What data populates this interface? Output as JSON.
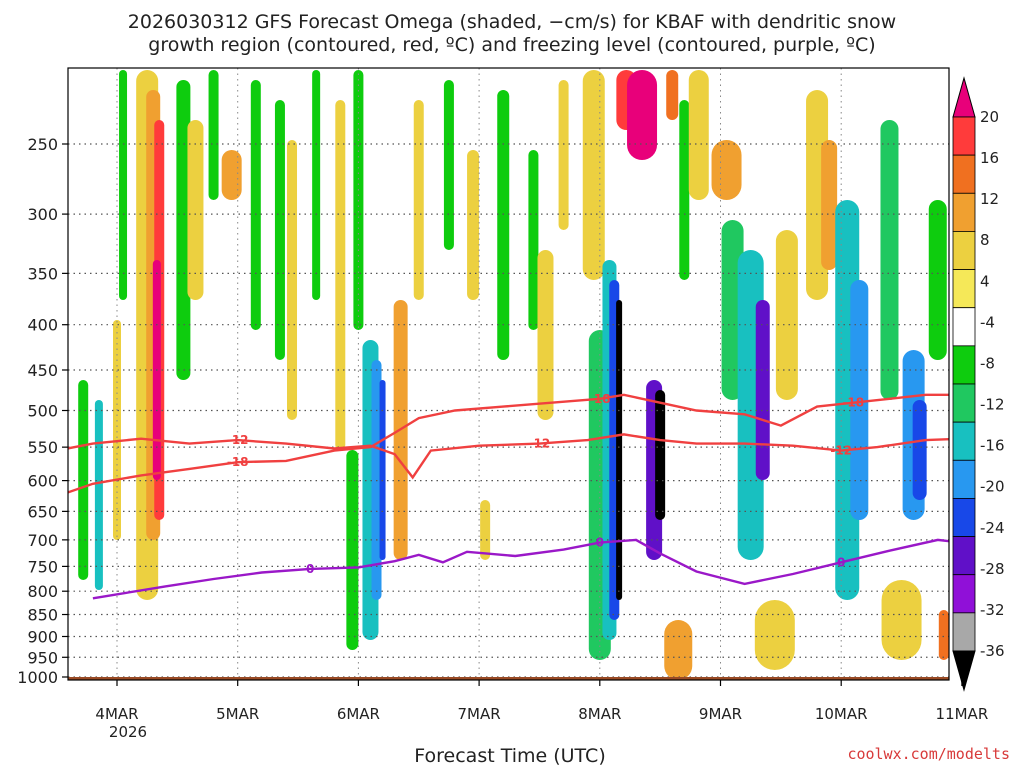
{
  "title_line1": "2026030312 GFS Forecast Omega (shaded, −cm/s) for KBAF with dendritic snow",
  "title_line2": "growth region (contoured, red, ºC) and freezing level (contoured, purple, ºC)",
  "xlabel": "Forecast Time (UTC)",
  "credit": "coolwx.com/modelts",
  "year_label": "2026",
  "chart_data": {
    "type": "heatmap",
    "x_ticks": [
      "4MAR",
      "5MAR",
      "6MAR",
      "7MAR",
      "8MAR",
      "9MAR",
      "10MAR",
      "11MAR"
    ],
    "y_ticks": [
      250,
      300,
      350,
      400,
      450,
      500,
      550,
      600,
      650,
      700,
      750,
      800,
      850,
      900,
      950,
      1000
    ],
    "y_unit": "hPa",
    "y_scale": "log",
    "y_range": [
      1000,
      200
    ],
    "grid": true,
    "colorbar": {
      "tick_labels": [
        "20",
        "16",
        "12",
        "8",
        "4",
        "-4",
        "-8",
        "-12",
        "-16",
        "-20",
        "-24",
        "-28",
        "-32",
        "-36"
      ],
      "colors": [
        "#e8007a",
        "#ff3b3b",
        "#f07020",
        "#f0a030",
        "#ecd040",
        "#f5e858",
        "#ffffff",
        "#0ecc0e",
        "#20c860",
        "#18c0c0",
        "#2898f0",
        "#1848e8",
        "#6010c8",
        "#9010d8",
        "#a8a8a8",
        "#000000"
      ]
    },
    "dgz_contours": [
      {
        "label": "-12",
        "points": [
          [
            3.5,
            555
          ],
          [
            3.8,
            545
          ],
          [
            4.2,
            538
          ],
          [
            4.6,
            545
          ],
          [
            5.0,
            540
          ],
          [
            5.4,
            545
          ],
          [
            5.8,
            552
          ],
          [
            6.1,
            548
          ],
          [
            6.3,
            560
          ],
          [
            6.45,
            595
          ],
          [
            6.6,
            555
          ],
          [
            7.0,
            548
          ],
          [
            7.5,
            545
          ],
          [
            7.9,
            540
          ],
          [
            8.2,
            532
          ],
          [
            8.5,
            540
          ],
          [
            8.8,
            545
          ],
          [
            9.2,
            545
          ],
          [
            9.6,
            548
          ],
          [
            10.0,
            555
          ],
          [
            10.3,
            550
          ],
          [
            10.7,
            540
          ],
          [
            11.0,
            538
          ]
        ]
      },
      {
        "label": "-18",
        "points": [
          [
            3.5,
            625
          ],
          [
            3.8,
            605
          ],
          [
            4.2,
            592
          ],
          [
            4.6,
            582
          ],
          [
            5.0,
            572
          ],
          [
            5.4,
            570
          ],
          [
            5.8,
            555
          ],
          [
            6.1,
            550
          ],
          [
            6.3,
            530
          ],
          [
            6.5,
            510
          ],
          [
            6.8,
            500
          ],
          [
            7.2,
            495
          ],
          [
            7.6,
            490
          ],
          [
            8.0,
            485
          ],
          [
            8.2,
            480
          ],
          [
            8.5,
            490
          ],
          [
            8.8,
            500
          ],
          [
            9.2,
            505
          ],
          [
            9.5,
            520
          ],
          [
            9.8,
            495
          ],
          [
            10.1,
            490
          ],
          [
            10.4,
            485
          ],
          [
            10.7,
            480
          ],
          [
            11.0,
            480
          ]
        ]
      }
    ],
    "freezing_level": {
      "label": "0",
      "points": [
        [
          3.8,
          815
        ],
        [
          4.4,
          790
        ],
        [
          4.8,
          775
        ],
        [
          5.2,
          762
        ],
        [
          5.6,
          755
        ],
        [
          6.0,
          752
        ],
        [
          6.3,
          740
        ],
        [
          6.5,
          728
        ],
        [
          6.7,
          742
        ],
        [
          6.9,
          722
        ],
        [
          7.3,
          730
        ],
        [
          7.7,
          718
        ],
        [
          8.0,
          705
        ],
        [
          8.3,
          700
        ],
        [
          8.5,
          725
        ],
        [
          8.8,
          760
        ],
        [
          9.2,
          785
        ],
        [
          9.6,
          765
        ],
        [
          10.0,
          742
        ],
        [
          10.4,
          720
        ],
        [
          10.8,
          700
        ],
        [
          11.0,
          705
        ]
      ]
    },
    "ground_level_hPa": 1000
  }
}
